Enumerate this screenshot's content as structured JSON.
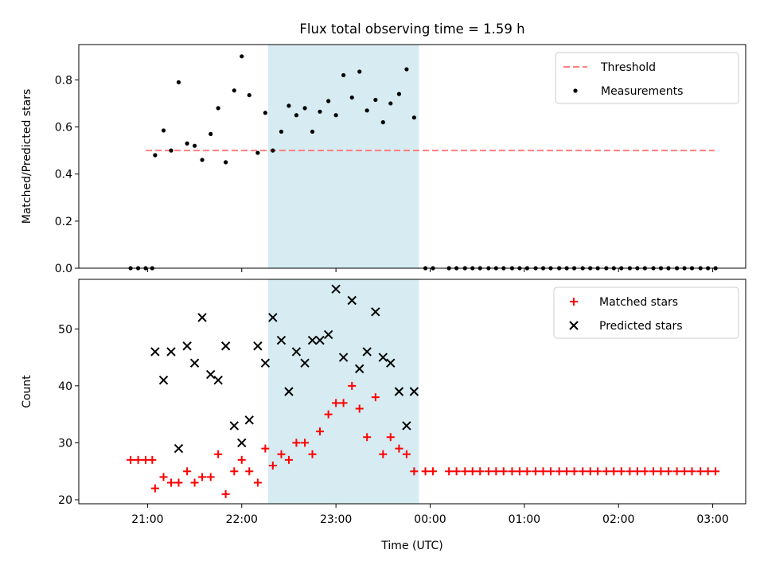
{
  "title": "Flux total observing time = 1.59 h",
  "xlabel": "Time (UTC)",
  "x_tick_labels": [
    "21:00",
    "22:00",
    "23:00",
    "00:00",
    "01:00",
    "02:00",
    "03:00"
  ],
  "colors": {
    "threshold": "#ff7f7f",
    "measurements": "#000000",
    "matched": "#ff0000",
    "predicted": "#000000",
    "span": "#add8e6"
  },
  "chart_data": [
    {
      "type": "scatter",
      "ylabel": "Matched/Predicted stars",
      "x_unit": "hours since 00:00 UTC of first night",
      "xlim": [
        20.27,
        27.35
      ],
      "ylim": [
        0.0,
        0.95
      ],
      "y_ticks": [
        0.0,
        0.2,
        0.4,
        0.6,
        0.8
      ],
      "y_tick_labels": [
        "0.0",
        "0.2",
        "0.4",
        "0.6",
        "0.8"
      ],
      "shaded_span": [
        22.28,
        23.88
      ],
      "legend": {
        "placement": "top-right"
      },
      "series": [
        {
          "name": "Threshold",
          "kind": "dashed-line",
          "x": [
            20.98,
            27.02
          ],
          "y": [
            0.5,
            0.5
          ]
        },
        {
          "name": "Measurements",
          "kind": "dot",
          "points": [
            [
              20.82,
              0.0
            ],
            [
              20.9,
              0.0
            ],
            [
              20.98,
              0.0
            ],
            [
              21.05,
              0.0
            ],
            [
              21.08,
              0.48
            ],
            [
              21.17,
              0.585
            ],
            [
              21.25,
              0.5
            ],
            [
              21.33,
              0.79
            ],
            [
              21.42,
              0.53
            ],
            [
              21.5,
              0.52
            ],
            [
              21.58,
              0.46
            ],
            [
              21.67,
              0.57
            ],
            [
              21.75,
              0.68
            ],
            [
              21.83,
              0.45
            ],
            [
              21.92,
              0.755
            ],
            [
              22.0,
              0.9
            ],
            [
              22.08,
              0.735
            ],
            [
              22.17,
              0.49
            ],
            [
              22.25,
              0.66
            ],
            [
              22.33,
              0.5
            ],
            [
              22.42,
              0.58
            ],
            [
              22.5,
              0.69
            ],
            [
              22.58,
              0.65
            ],
            [
              22.67,
              0.68
            ],
            [
              22.75,
              0.58
            ],
            [
              22.83,
              0.665
            ],
            [
              22.92,
              0.71
            ],
            [
              23.0,
              0.65
            ],
            [
              23.08,
              0.82
            ],
            [
              23.17,
              0.725
            ],
            [
              23.25,
              0.835
            ],
            [
              23.33,
              0.67
            ],
            [
              23.42,
              0.715
            ],
            [
              23.5,
              0.62
            ],
            [
              23.58,
              0.7
            ],
            [
              23.67,
              0.74
            ],
            [
              23.75,
              0.845
            ],
            [
              23.83,
              0.64
            ],
            [
              23.95,
              0.0
            ],
            [
              24.03,
              0.0
            ],
            [
              24.2,
              0.0
            ],
            [
              24.28,
              0.0
            ],
            [
              24.37,
              0.0
            ],
            [
              24.45,
              0.0
            ],
            [
              24.53,
              0.0
            ],
            [
              24.62,
              0.0
            ],
            [
              24.7,
              0.0
            ],
            [
              24.78,
              0.0
            ],
            [
              24.87,
              0.0
            ],
            [
              24.95,
              0.0
            ],
            [
              25.03,
              0.0
            ],
            [
              25.12,
              0.0
            ],
            [
              25.2,
              0.0
            ],
            [
              25.28,
              0.0
            ],
            [
              25.37,
              0.0
            ],
            [
              25.45,
              0.0
            ],
            [
              25.53,
              0.0
            ],
            [
              25.62,
              0.0
            ],
            [
              25.7,
              0.0
            ],
            [
              25.78,
              0.0
            ],
            [
              25.87,
              0.0
            ],
            [
              25.95,
              0.0
            ],
            [
              26.03,
              0.0
            ],
            [
              26.12,
              0.0
            ],
            [
              26.2,
              0.0
            ],
            [
              26.28,
              0.0
            ],
            [
              26.37,
              0.0
            ],
            [
              26.45,
              0.0
            ],
            [
              26.53,
              0.0
            ],
            [
              26.62,
              0.0
            ],
            [
              26.7,
              0.0
            ],
            [
              26.78,
              0.0
            ],
            [
              26.87,
              0.0
            ],
            [
              26.95,
              0.0
            ],
            [
              27.03,
              0.0
            ]
          ]
        }
      ]
    },
    {
      "type": "scatter",
      "ylabel": "Count",
      "x_unit": "hours since 00:00 UTC of first night",
      "xlim": [
        20.27,
        27.35
      ],
      "ylim": [
        19.3,
        58.7
      ],
      "y_ticks": [
        20,
        30,
        40,
        50
      ],
      "y_tick_labels": [
        "20",
        "30",
        "40",
        "50"
      ],
      "shaded_span": [
        22.28,
        23.88
      ],
      "legend": {
        "placement": "top-right"
      },
      "series": [
        {
          "name": "Matched stars",
          "kind": "plus",
          "points": [
            [
              20.82,
              27
            ],
            [
              20.9,
              27
            ],
            [
              20.98,
              27
            ],
            [
              21.05,
              27
            ],
            [
              21.08,
              22
            ],
            [
              21.17,
              24
            ],
            [
              21.25,
              23
            ],
            [
              21.33,
              23
            ],
            [
              21.42,
              25
            ],
            [
              21.5,
              23
            ],
            [
              21.58,
              24
            ],
            [
              21.67,
              24
            ],
            [
              21.75,
              28
            ],
            [
              21.83,
              21
            ],
            [
              21.92,
              25
            ],
            [
              22.0,
              27
            ],
            [
              22.08,
              25
            ],
            [
              22.17,
              23
            ],
            [
              22.25,
              29
            ],
            [
              22.33,
              26
            ],
            [
              22.42,
              28
            ],
            [
              22.5,
              27
            ],
            [
              22.58,
              30
            ],
            [
              22.67,
              30
            ],
            [
              22.75,
              28
            ],
            [
              22.83,
              32
            ],
            [
              22.92,
              35
            ],
            [
              23.0,
              37
            ],
            [
              23.08,
              37
            ],
            [
              23.17,
              40
            ],
            [
              23.25,
              36
            ],
            [
              23.33,
              31
            ],
            [
              23.42,
              38
            ],
            [
              23.5,
              28
            ],
            [
              23.58,
              31
            ],
            [
              23.67,
              29
            ],
            [
              23.75,
              28
            ],
            [
              23.83,
              25
            ],
            [
              23.95,
              25
            ],
            [
              24.03,
              25
            ],
            [
              24.2,
              25
            ],
            [
              24.28,
              25
            ],
            [
              24.37,
              25
            ],
            [
              24.45,
              25
            ],
            [
              24.53,
              25
            ],
            [
              24.62,
              25
            ],
            [
              24.7,
              25
            ],
            [
              24.78,
              25
            ],
            [
              24.87,
              25
            ],
            [
              24.95,
              25
            ],
            [
              25.03,
              25
            ],
            [
              25.12,
              25
            ],
            [
              25.2,
              25
            ],
            [
              25.28,
              25
            ],
            [
              25.37,
              25
            ],
            [
              25.45,
              25
            ],
            [
              25.53,
              25
            ],
            [
              25.62,
              25
            ],
            [
              25.7,
              25
            ],
            [
              25.78,
              25
            ],
            [
              25.87,
              25
            ],
            [
              25.95,
              25
            ],
            [
              26.03,
              25
            ],
            [
              26.12,
              25
            ],
            [
              26.2,
              25
            ],
            [
              26.28,
              25
            ],
            [
              26.37,
              25
            ],
            [
              26.45,
              25
            ],
            [
              26.53,
              25
            ],
            [
              26.62,
              25
            ],
            [
              26.7,
              25
            ],
            [
              26.78,
              25
            ],
            [
              26.87,
              25
            ],
            [
              26.95,
              25
            ],
            [
              27.03,
              25
            ]
          ]
        },
        {
          "name": "Predicted stars",
          "kind": "x",
          "points": [
            [
              21.08,
              46
            ],
            [
              21.17,
              41
            ],
            [
              21.25,
              46
            ],
            [
              21.33,
              29
            ],
            [
              21.42,
              47
            ],
            [
              21.5,
              44
            ],
            [
              21.58,
              52
            ],
            [
              21.67,
              42
            ],
            [
              21.75,
              41
            ],
            [
              21.83,
              47
            ],
            [
              21.92,
              33
            ],
            [
              22.0,
              30
            ],
            [
              22.08,
              34
            ],
            [
              22.17,
              47
            ],
            [
              22.25,
              44
            ],
            [
              22.33,
              52
            ],
            [
              22.42,
              48
            ],
            [
              22.5,
              39
            ],
            [
              22.58,
              46
            ],
            [
              22.67,
              44
            ],
            [
              22.75,
              48
            ],
            [
              22.83,
              48
            ],
            [
              22.92,
              49
            ],
            [
              23.0,
              57
            ],
            [
              23.08,
              45
            ],
            [
              23.17,
              55
            ],
            [
              23.25,
              43
            ],
            [
              23.33,
              46
            ],
            [
              23.42,
              53
            ],
            [
              23.5,
              45
            ],
            [
              23.58,
              44
            ],
            [
              23.67,
              39
            ],
            [
              23.75,
              33
            ],
            [
              23.83,
              39
            ]
          ]
        }
      ]
    }
  ]
}
